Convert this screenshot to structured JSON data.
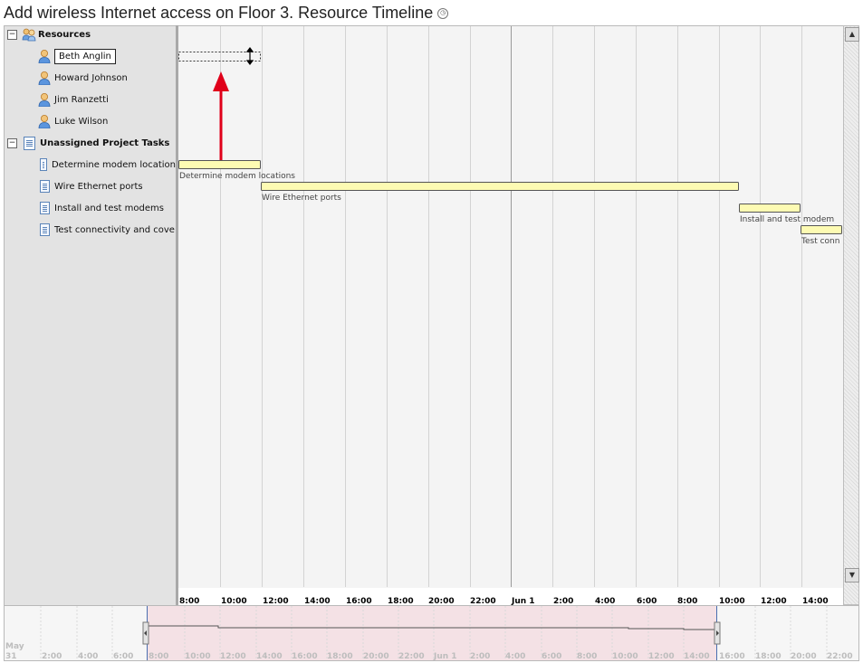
{
  "title": "Add wireless Internet access on Floor 3. Resource Timeline",
  "tree": {
    "resources_label": "Resources",
    "resources": [
      {
        "name": "Beth Anglin",
        "selected": true
      },
      {
        "name": "Howard Johnson"
      },
      {
        "name": "Jim Ranzetti"
      },
      {
        "name": "Luke Wilson"
      }
    ],
    "tasks_label": "Unassigned Project Tasks",
    "tasks": [
      {
        "name": "Determine modem location"
      },
      {
        "name": "Wire Ethernet ports"
      },
      {
        "name": "Install and test modems"
      },
      {
        "name": "Test connectivity and cove"
      }
    ]
  },
  "timeline": {
    "bars": [
      {
        "label": "Determine modem locations",
        "row": 0
      },
      {
        "label": "Wire Ethernet ports",
        "row": 1
      },
      {
        "label": "Install and test modem",
        "row": 2
      },
      {
        "label": "Test conn",
        "row": 3
      }
    ],
    "hour_labels": [
      "8:00",
      "10:00",
      "12:00",
      "14:00",
      "16:00",
      "18:00",
      "20:00",
      "22:00",
      "Jun 1",
      "2:00",
      "4:00",
      "6:00",
      "8:00",
      "10:00",
      "12:00",
      "14:00"
    ]
  },
  "navigator": {
    "labels": [
      "2:00",
      "4:00",
      "6:00",
      "8:00",
      "10:00",
      "12:00",
      "14:00",
      "16:00",
      "18:00",
      "20:00",
      "22:00",
      "Jun 1",
      "2:00",
      "4:00",
      "6:00",
      "8:00",
      "10:00",
      "12:00",
      "14:00",
      "16:00",
      "18:00",
      "20:00",
      "22:00"
    ],
    "month_label": "May",
    "day_label": "31"
  },
  "colors": {
    "bar_fill": "#fdfbb3",
    "selection_fill": "#f4e1e5",
    "arrow": "#e0001a"
  }
}
